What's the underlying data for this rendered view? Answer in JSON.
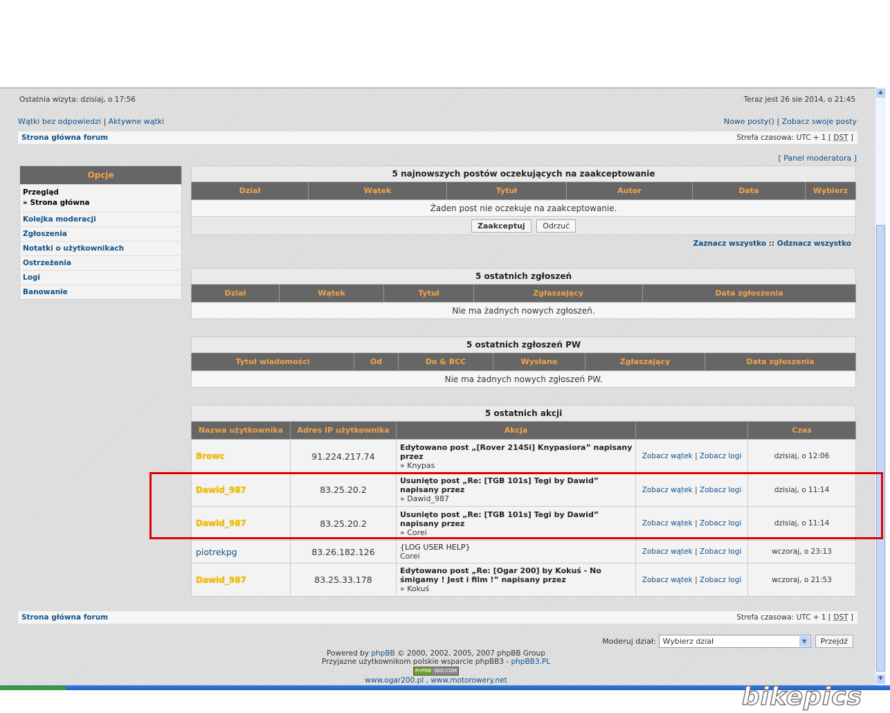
{
  "header": {
    "last_visit": "Ostatnia wizyta: dzisiaj, o 17:56",
    "now": "Teraz jest 26 sie 2014, o 21:45",
    "link_unanswered": "Wątki bez odpowiedzi",
    "link_active": "Aktywne wątki",
    "link_new_posts": "Nowe posty()",
    "link_own_posts": "Zobacz swoje posty",
    "sep": "|"
  },
  "breadcrumb": {
    "home": "Strona główna forum",
    "timezone": "Strefa czasowa: UTC + 1 [",
    "dst": "DST",
    "close": "]"
  },
  "mod_panel_link": "[ Panel moderatora ]",
  "sidebar": {
    "title": "Opcje",
    "overview": "Przegląd",
    "current": "» Strona główna",
    "items": [
      "Kolejka moderacji",
      "Zgłoszenia",
      "Notatki o użytkownikach",
      "Ostrzeżenia",
      "Logi",
      "Banowanie"
    ]
  },
  "queue": {
    "title": "5 najnowszych postów oczekujących na zaakceptowanie",
    "cols": [
      "Dział",
      "Wątek",
      "Tytuł",
      "Autor",
      "Data",
      "Wybierz"
    ],
    "empty": "Żaden post nie oczekuje na zaakceptowanie.",
    "accept": "Zaakceptuj",
    "reject": "Odrzuć",
    "select_all": "Zaznacz wszystko",
    "deselect_all": "Odznacz wszystko",
    "sep": "::"
  },
  "reports": {
    "title": "5 ostatnich zgłoszeń",
    "cols": [
      "Dział",
      "Wątek",
      "Tytuł",
      "Zgłaszający",
      "Data zgłoszenia"
    ],
    "empty": "Nie ma żadnych nowych zgłoszeń."
  },
  "pm_reports": {
    "title": "5 ostatnich zgłoszeń PW",
    "cols": [
      "Tytuł wiadomości",
      "Od",
      "Do & BCC",
      "Wysłano",
      "Zgłaszający",
      "Data zgłoszenia"
    ],
    "empty": "Nie ma żadnych nowych zgłoszeń PW."
  },
  "actions": {
    "title": "5 ostatnich akcji",
    "cols": [
      "Nazwa użytkownika",
      "Adres IP użytkownika",
      "Akcja",
      "",
      "Czas"
    ],
    "view_topic": "Zobacz wątek",
    "view_logs": "Zobacz logi",
    "rows": [
      {
        "user": "Browc",
        "ip": "91.224.217.74",
        "action": "Edytowano post „[Rover 214Si] Knypasiora” napisany przez",
        "by": "» Knypas",
        "time": "dzisiaj, o 12:06",
        "bold": true
      },
      {
        "user": "Dawid_987",
        "ip": "83.25.20.2",
        "action": "Usunięto post „Re: [TGB 101s] Tegi by Dawid” napisany przez",
        "by": "» Dawid_987",
        "time": "dzisiaj, o 11:14",
        "bold": true
      },
      {
        "user": "Dawid_987",
        "ip": "83.25.20.2",
        "action": "Usunięto post „Re: [TGB 101s] Tegi by Dawid” napisany przez",
        "by": "» Corei",
        "time": "dzisiaj, o 11:14",
        "bold": true
      },
      {
        "user": "piotrekpg",
        "ip": "83.26.182.126",
        "action": "{LOG USER HELP}",
        "by": "Corei",
        "time": "wczoraj, o 23:13",
        "bold": false
      },
      {
        "user": "Dawid_987",
        "ip": "83.25.33.178",
        "action": "Edytowano post „Re: [Ogar 200] by Kokuś - No śmigamy ! Jest i film !” napisany przez",
        "by": "» Kokuś",
        "time": "wczoraj, o 21:53",
        "bold": true
      }
    ]
  },
  "footer": {
    "moderate_label": "Moderuj dział:",
    "select_value": "Wybierz dział",
    "go": "Przejdź",
    "powered_pre": "Powered by",
    "phpbb": "phpBB",
    "powered_post": "© 2000, 2002, 2005, 2007 phpBB Group",
    "polish_pre": "Przyjazne użytkownikom polskie wsparcie phpBB3 -",
    "phpbb3pl": "phpBB3.PL",
    "badge_left": "PHPBB",
    "badge_right": "SEO.COM",
    "sites": "www.ogar200.pl , www.motorowery.net"
  },
  "watermark": "bikepics",
  "colors": {
    "header_bg": "#666666",
    "header_text": "#f3a24a",
    "link": "#105289",
    "highlight": "#e00000",
    "user_color": "#f0c000"
  }
}
